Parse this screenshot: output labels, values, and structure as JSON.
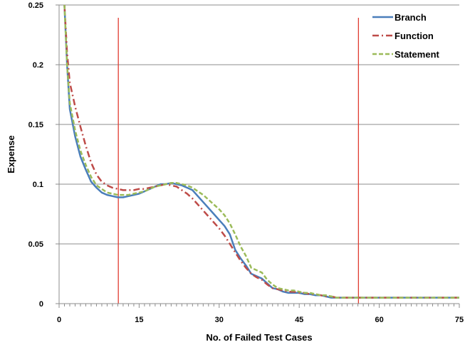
{
  "chart_data": {
    "type": "line",
    "title": "",
    "xlabel": "No. of Failed Test Cases",
    "ylabel": "Expense",
    "xlim": [
      0,
      75
    ],
    "ylim": [
      0,
      0.25
    ],
    "x_ticks": [
      0,
      15,
      30,
      45,
      60,
      75
    ],
    "x_tick_labels": [
      "0",
      "15",
      "30",
      "45",
      "60",
      "75"
    ],
    "y_ticks": [
      0,
      0.05,
      0.1,
      0.15,
      0.2,
      0.25
    ],
    "y_tick_labels": [
      "0",
      "0.05",
      "0.1",
      "0.15",
      "0.2",
      "0.25"
    ],
    "grid": "horizontal",
    "legend_position": "top-right",
    "reference_lines_x": [
      11.1,
      56.1
    ],
    "reference_line_color": "#e03c31",
    "series": [
      {
        "name": "Branch",
        "color": "#4a7ebb",
        "dash": "solid",
        "points": [
          [
            1,
            0.25
          ],
          [
            1.5,
            0.2
          ],
          [
            2,
            0.163
          ],
          [
            3,
            0.14
          ],
          [
            4,
            0.123
          ],
          [
            5,
            0.112
          ],
          [
            6,
            0.102
          ],
          [
            7,
            0.097
          ],
          [
            8,
            0.093
          ],
          [
            9,
            0.091
          ],
          [
            10,
            0.09
          ],
          [
            11,
            0.089
          ],
          [
            12,
            0.089
          ],
          [
            13,
            0.09
          ],
          [
            14,
            0.091
          ],
          [
            15,
            0.092
          ],
          [
            16,
            0.094
          ],
          [
            17,
            0.096
          ],
          [
            18,
            0.098
          ],
          [
            19,
            0.1
          ],
          [
            20,
            0.1
          ],
          [
            21,
            0.101
          ],
          [
            22,
            0.1
          ],
          [
            23,
            0.099
          ],
          [
            24,
            0.097
          ],
          [
            25,
            0.095
          ],
          [
            26,
            0.09
          ],
          [
            27,
            0.085
          ],
          [
            28,
            0.08
          ],
          [
            29,
            0.075
          ],
          [
            30,
            0.07
          ],
          [
            31,
            0.065
          ],
          [
            32,
            0.058
          ],
          [
            33,
            0.045
          ],
          [
            34,
            0.038
          ],
          [
            35,
            0.032
          ],
          [
            36,
            0.025
          ],
          [
            37,
            0.023
          ],
          [
            38,
            0.021
          ],
          [
            39,
            0.017
          ],
          [
            40,
            0.013
          ],
          [
            41,
            0.012
          ],
          [
            42,
            0.01
          ],
          [
            43,
            0.009
          ],
          [
            44,
            0.009
          ],
          [
            45,
            0.009
          ],
          [
            46,
            0.008
          ],
          [
            47,
            0.008
          ],
          [
            48,
            0.007
          ],
          [
            49,
            0.007
          ],
          [
            50,
            0.006
          ],
          [
            51,
            0.005
          ],
          [
            52,
            0.005
          ],
          [
            53,
            0.005
          ],
          [
            54,
            0.005
          ],
          [
            55,
            0.005
          ],
          [
            56,
            0.005
          ],
          [
            58,
            0.005
          ],
          [
            60,
            0.005
          ],
          [
            62,
            0.005
          ],
          [
            65,
            0.005
          ],
          [
            68,
            0.005
          ],
          [
            70,
            0.005
          ],
          [
            72,
            0.005
          ],
          [
            75,
            0.005
          ]
        ]
      },
      {
        "name": "Function",
        "color": "#be4b48",
        "dash": "dashdot",
        "points": [
          [
            1,
            0.25
          ],
          [
            1.5,
            0.21
          ],
          [
            2,
            0.185
          ],
          [
            3,
            0.165
          ],
          [
            4,
            0.148
          ],
          [
            5,
            0.132
          ],
          [
            6,
            0.118
          ],
          [
            7,
            0.108
          ],
          [
            8,
            0.102
          ],
          [
            9,
            0.099
          ],
          [
            10,
            0.097
          ],
          [
            11,
            0.096
          ],
          [
            12,
            0.095
          ],
          [
            13,
            0.095
          ],
          [
            14,
            0.095
          ],
          [
            15,
            0.096
          ],
          [
            16,
            0.096
          ],
          [
            17,
            0.097
          ],
          [
            18,
            0.098
          ],
          [
            19,
            0.099
          ],
          [
            20,
            0.1
          ],
          [
            21,
            0.099
          ],
          [
            22,
            0.098
          ],
          [
            23,
            0.095
          ],
          [
            24,
            0.092
          ],
          [
            25,
            0.088
          ],
          [
            26,
            0.083
          ],
          [
            27,
            0.078
          ],
          [
            28,
            0.073
          ],
          [
            29,
            0.068
          ],
          [
            30,
            0.063
          ],
          [
            31,
            0.057
          ],
          [
            32,
            0.05
          ],
          [
            33,
            0.043
          ],
          [
            34,
            0.036
          ],
          [
            35,
            0.03
          ],
          [
            36,
            0.025
          ],
          [
            37,
            0.022
          ],
          [
            38,
            0.02
          ],
          [
            39,
            0.016
          ],
          [
            40,
            0.013
          ],
          [
            41,
            0.012
          ],
          [
            42,
            0.011
          ],
          [
            43,
            0.01
          ],
          [
            44,
            0.01
          ],
          [
            45,
            0.009
          ],
          [
            46,
            0.009
          ],
          [
            47,
            0.008
          ],
          [
            48,
            0.008
          ],
          [
            49,
            0.007
          ],
          [
            50,
            0.006
          ],
          [
            51,
            0.006
          ],
          [
            52,
            0.005
          ],
          [
            54,
            0.005
          ],
          [
            56,
            0.005
          ],
          [
            58,
            0.005
          ],
          [
            60,
            0.005
          ],
          [
            62,
            0.005
          ],
          [
            65,
            0.005
          ],
          [
            68,
            0.005
          ],
          [
            70,
            0.005
          ],
          [
            72,
            0.005
          ],
          [
            75,
            0.005
          ]
        ]
      },
      {
        "name": "Statement",
        "color": "#9bbb59",
        "dash": "dashed",
        "points": [
          [
            1,
            0.25
          ],
          [
            1.5,
            0.2
          ],
          [
            2,
            0.168
          ],
          [
            3,
            0.145
          ],
          [
            4,
            0.128
          ],
          [
            5,
            0.116
          ],
          [
            6,
            0.106
          ],
          [
            7,
            0.099
          ],
          [
            8,
            0.096
          ],
          [
            9,
            0.093
          ],
          [
            10,
            0.092
          ],
          [
            11,
            0.091
          ],
          [
            12,
            0.091
          ],
          [
            13,
            0.091
          ],
          [
            14,
            0.092
          ],
          [
            15,
            0.093
          ],
          [
            16,
            0.094
          ],
          [
            17,
            0.096
          ],
          [
            18,
            0.098
          ],
          [
            19,
            0.099
          ],
          [
            20,
            0.1
          ],
          [
            21,
            0.101
          ],
          [
            22,
            0.101
          ],
          [
            23,
            0.1
          ],
          [
            24,
            0.099
          ],
          [
            25,
            0.097
          ],
          [
            26,
            0.094
          ],
          [
            27,
            0.091
          ],
          [
            28,
            0.087
          ],
          [
            29,
            0.083
          ],
          [
            30,
            0.079
          ],
          [
            31,
            0.074
          ],
          [
            32,
            0.067
          ],
          [
            33,
            0.058
          ],
          [
            34,
            0.048
          ],
          [
            35,
            0.04
          ],
          [
            36,
            0.03
          ],
          [
            37,
            0.028
          ],
          [
            38,
            0.026
          ],
          [
            39,
            0.02
          ],
          [
            40,
            0.016
          ],
          [
            41,
            0.013
          ],
          [
            42,
            0.012
          ],
          [
            43,
            0.011
          ],
          [
            44,
            0.011
          ],
          [
            45,
            0.01
          ],
          [
            46,
            0.009
          ],
          [
            47,
            0.009
          ],
          [
            48,
            0.008
          ],
          [
            49,
            0.007
          ],
          [
            50,
            0.007
          ],
          [
            51,
            0.006
          ],
          [
            52,
            0.005
          ],
          [
            54,
            0.005
          ],
          [
            56,
            0.005
          ],
          [
            58,
            0.005
          ],
          [
            60,
            0.005
          ],
          [
            62,
            0.005
          ],
          [
            65,
            0.005
          ],
          [
            68,
            0.005
          ],
          [
            70,
            0.005
          ],
          [
            72,
            0.005
          ],
          [
            75,
            0.005
          ]
        ]
      }
    ]
  }
}
